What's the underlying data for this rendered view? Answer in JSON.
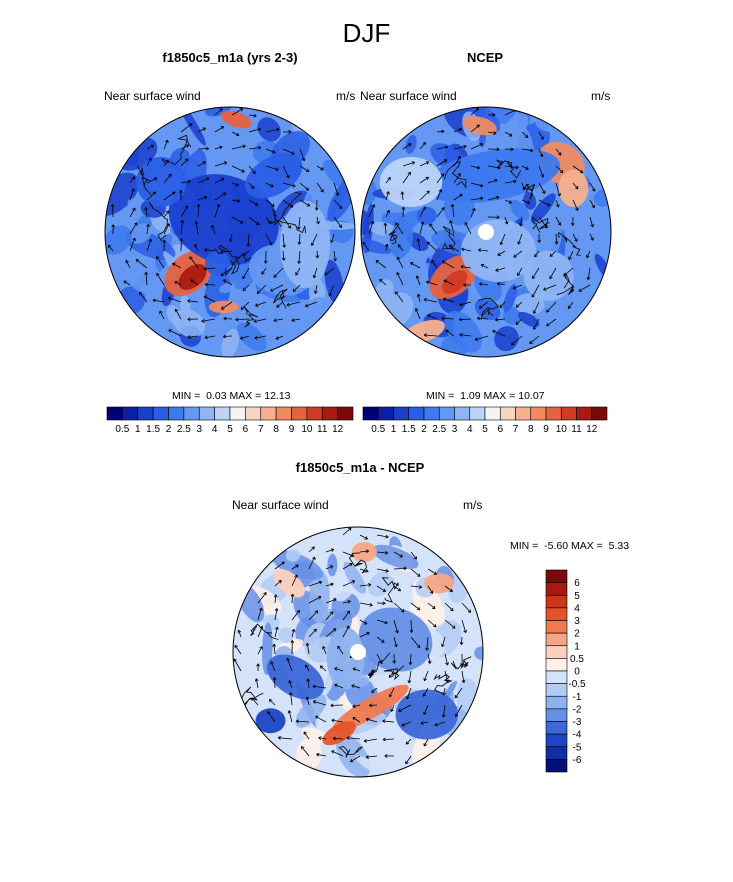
{
  "main_title": "DJF",
  "panels": {
    "p1": {
      "title": "f1850c5_m1a (yrs 2-3)",
      "left_label": "Near surface wind",
      "units": "m/s",
      "min_label": "MIN =",
      "min": "0.03",
      "max_label": "MAX =",
      "max": "12.13"
    },
    "p2": {
      "title": "NCEP",
      "left_label": "Near surface wind",
      "units": "m/s",
      "min_label": "MIN =",
      "min": "1.09",
      "max_label": "MAX =",
      "max": "10.07"
    },
    "p3": {
      "title": "f1850c5_m1a - NCEP",
      "left_label": "Near surface wind",
      "units": "m/s",
      "min_label": "MIN =",
      "min": "-5.60",
      "max_label": "MAX =",
      "max": "5.33"
    }
  },
  "chart_data": [
    {
      "type": "polar_stereographic_contour_with_vectors",
      "title": "f1850c5_m1a (yrs 2-3)",
      "subtitle_left": "Near surface wind",
      "subtitle_right": "m/s",
      "min": 0.03,
      "max": 12.13,
      "colorbar_levels": [
        "0.5",
        "1",
        "1.5",
        "2",
        "2.5",
        "3",
        "4",
        "5",
        "6",
        "7",
        "8",
        "9",
        "10",
        "11",
        "12"
      ]
    },
    {
      "type": "polar_stereographic_contour_with_vectors",
      "title": "NCEP",
      "subtitle_left": "Near surface wind",
      "subtitle_right": "m/s",
      "min": 1.09,
      "max": 10.07,
      "colorbar_levels": [
        "0.5",
        "1",
        "1.5",
        "2",
        "2.5",
        "3",
        "4",
        "5",
        "6",
        "7",
        "8",
        "9",
        "10",
        "11",
        "12"
      ]
    },
    {
      "type": "polar_stereographic_contour_with_vectors",
      "title": "f1850c5_m1a - NCEP",
      "subtitle_left": "Near surface wind",
      "subtitle_right": "m/s",
      "min": -5.6,
      "max": 5.33,
      "colorbar_levels": [
        "6",
        "5",
        "4",
        "3",
        "2",
        "1",
        "0.5",
        "0",
        "-0.5",
        "-1",
        "-2",
        "-3",
        "-4",
        "-5",
        "-6"
      ]
    }
  ],
  "colors": {
    "seq": [
      "#00007a",
      "#0a1ea8",
      "#1a3fcf",
      "#2a5ee6",
      "#3d79ef",
      "#6498f2",
      "#8fb5f4",
      "#bcd3f7",
      "#f4f4f4",
      "#f8d5c2",
      "#f5b08f",
      "#ef8a63",
      "#e5623f",
      "#d23a24",
      "#aa1a12",
      "#7a0a0a"
    ],
    "div_top_to_bottom": [
      "#7a0a0a",
      "#a81a10",
      "#cc3618",
      "#e5532a",
      "#f07a50",
      "#f5a685",
      "#fbd0be",
      "#fff1e8",
      "#d4e3fa",
      "#b3ccf5",
      "#8eb2ee",
      "#6690e6",
      "#3c68d8",
      "#1e46c4",
      "#0f2ea8",
      "#050f7a"
    ]
  }
}
